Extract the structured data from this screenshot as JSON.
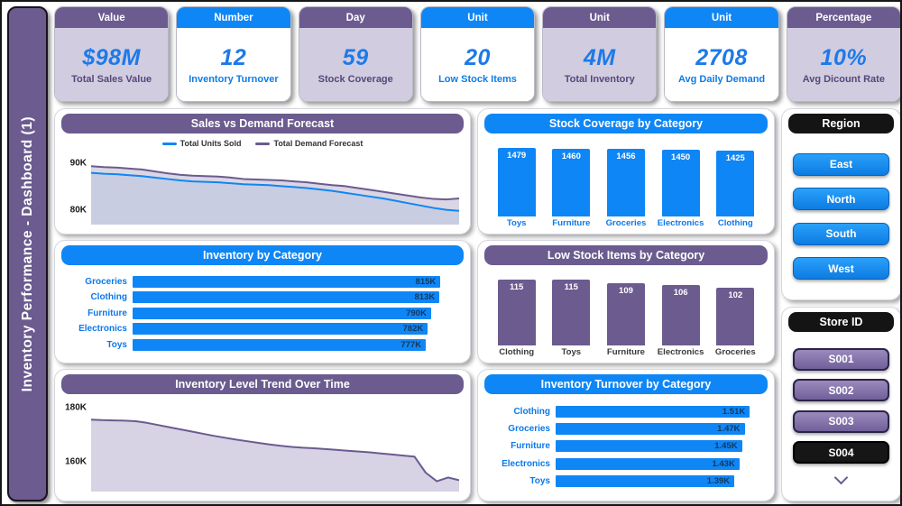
{
  "page": {
    "title": "Inventory Performance - Dashboard (1)"
  },
  "colors": {
    "purple": "#6b5b8f",
    "purple_dark": "#55487a",
    "blue": "#0f86f5",
    "blue_deep": "#0a62b8",
    "lavender": "#d2cce0",
    "value_blue": "#1d7ae8",
    "label_blue": "#0c78e8",
    "label_dark": "#3a3a3a",
    "bar_value_dark": "#12395f",
    "black": "#141414",
    "units_fill": "rgba(15,134,245,0.10)",
    "forecast_fill": "rgba(107,91,143,0.25)",
    "trend_fill": "#d8d2e5"
  },
  "kpis": [
    {
      "header": "Value",
      "value": "$98M",
      "label": "Total Sales Value",
      "theme": "purple"
    },
    {
      "header": "Number",
      "value": "12",
      "label": "Inventory Turnover",
      "theme": "blue"
    },
    {
      "header": "Day",
      "value": "59",
      "label": "Stock Coverage",
      "theme": "purple"
    },
    {
      "header": "Unit",
      "value": "20",
      "label": "Low Stock Items",
      "theme": "blue"
    },
    {
      "header": "Unit",
      "value": "4M",
      "label": "Total Inventory",
      "theme": "purple"
    },
    {
      "header": "Unit",
      "value": "2708",
      "label": "Avg Daily Demand",
      "theme": "blue"
    },
    {
      "header": "Percentage",
      "value": "10%",
      "label": "Avg Dicount Rate",
      "theme": "purple"
    }
  ],
  "chart_data": [
    {
      "id": "sales-vs-demand",
      "type": "line",
      "title": "Sales vs Demand Forecast",
      "legend": [
        "Total Units Sold",
        "Total Demand Forecast"
      ],
      "legend_position": "top",
      "grid": false,
      "ylim": [
        77,
        92
      ],
      "yticks": [
        {
          "value": 90,
          "label": "90K"
        },
        {
          "value": 80,
          "label": "80K"
        }
      ],
      "series": [
        {
          "name": "Total Units Sold",
          "color": "blue",
          "fill": "units_fill",
          "values_k": [
            87.9,
            87.7,
            87.6,
            87.4,
            87.2,
            86.9,
            86.6,
            86.3,
            86.1,
            86.0,
            85.9,
            85.7,
            85.5,
            85.4,
            85.3,
            85.1,
            84.9,
            84.7,
            84.4,
            84.1,
            83.7,
            83.3,
            82.9,
            82.5,
            82.0,
            81.5,
            81.0,
            80.5,
            80.1,
            79.9
          ]
        },
        {
          "name": "Total Demand Forecast",
          "color": "purple",
          "fill": "forecast_fill",
          "values_k": [
            89.3,
            89.1,
            89.0,
            88.8,
            88.6,
            88.2,
            87.8,
            87.5,
            87.3,
            87.2,
            87.1,
            86.9,
            86.6,
            86.5,
            86.4,
            86.3,
            86.1,
            85.9,
            85.6,
            85.3,
            85.1,
            84.7,
            84.3,
            83.9,
            83.5,
            83.1,
            82.7,
            82.4,
            82.3,
            82.5
          ]
        }
      ]
    },
    {
      "id": "inventory-by-category",
      "type": "hbar",
      "title": "Inventory by Category",
      "categories": [
        "Groceries",
        "Clothing",
        "Furniture",
        "Electronics",
        "Toys"
      ],
      "values": [
        815,
        813,
        790,
        782,
        777
      ],
      "value_labels": [
        "815K",
        "813K",
        "790K",
        "782K",
        "777K"
      ],
      "xlim": [
        0,
        860
      ],
      "bar_color": "blue",
      "label_color": "label_blue"
    },
    {
      "id": "inventory-trend",
      "type": "area",
      "title": "Inventory Level Trend Over Time",
      "grid": false,
      "ylim": [
        149,
        183
      ],
      "yticks": [
        {
          "value": 180,
          "label": "180K"
        },
        {
          "value": 160,
          "label": "160K"
        }
      ],
      "series": [
        {
          "name": "Inventory Level",
          "color": "purple",
          "fill": "trend_fill",
          "values_k": [
            175.6,
            175.4,
            175.3,
            175.2,
            175.0,
            174.4,
            173.6,
            172.8,
            172.0,
            171.2,
            170.4,
            169.6,
            168.9,
            168.2,
            167.6,
            167.0,
            166.4,
            165.9,
            165.5,
            165.2,
            165.0,
            164.7,
            164.4,
            164.1,
            163.8,
            163.5,
            163.1,
            162.7,
            162.3,
            161.9,
            156.0,
            152.8,
            154.2,
            153.2
          ]
        }
      ]
    },
    {
      "id": "stock-coverage",
      "type": "bar",
      "title": "Stock Coverage by Category",
      "categories": [
        "Toys",
        "Furniture",
        "Groceries",
        "Electronics",
        "Clothing"
      ],
      "values": [
        1479,
        1460,
        1456,
        1450,
        1425
      ],
      "value_labels": [
        "1479",
        "1460",
        "1456",
        "1450",
        "1425"
      ],
      "ylim": [
        0,
        1600
      ],
      "bar_color": "blue",
      "label_color": "label_blue"
    },
    {
      "id": "low-stock",
      "type": "bar",
      "title": "Low Stock Items by Category",
      "categories": [
        "Clothing",
        "Toys",
        "Furniture",
        "Electronics",
        "Groceries"
      ],
      "values": [
        115,
        115,
        109,
        106,
        102
      ],
      "value_labels": [
        "115",
        "115",
        "109",
        "106",
        "102"
      ],
      "ylim": [
        0,
        125
      ],
      "bar_color": "purple",
      "label_color": "label_dark"
    },
    {
      "id": "inventory-turnover",
      "type": "hbar",
      "title": "Inventory Turnover by Category",
      "categories": [
        "Clothing",
        "Groceries",
        "Furniture",
        "Electronics",
        "Toys"
      ],
      "values": [
        1.51,
        1.47,
        1.45,
        1.43,
        1.39
      ],
      "value_labels": [
        "1.51K",
        "1.47K",
        "1.45K",
        "1.43K",
        "1.39K"
      ],
      "xlim": [
        0,
        1.6
      ],
      "bar_color": "blue",
      "label_color": "label_blue"
    }
  ],
  "slicers": {
    "region": {
      "title": "Region",
      "options": [
        {
          "label": "East",
          "variant": "blue"
        },
        {
          "label": "North",
          "variant": "blue"
        },
        {
          "label": "South",
          "variant": "blue"
        },
        {
          "label": "West",
          "variant": "blue"
        }
      ]
    },
    "store": {
      "title": "Store ID",
      "options": [
        {
          "label": "S001",
          "variant": "purple",
          "selected": false
        },
        {
          "label": "S002",
          "variant": "purple",
          "selected": false
        },
        {
          "label": "S003",
          "variant": "purple",
          "selected": false
        },
        {
          "label": "S004",
          "variant": "black",
          "selected": true
        }
      ]
    }
  }
}
